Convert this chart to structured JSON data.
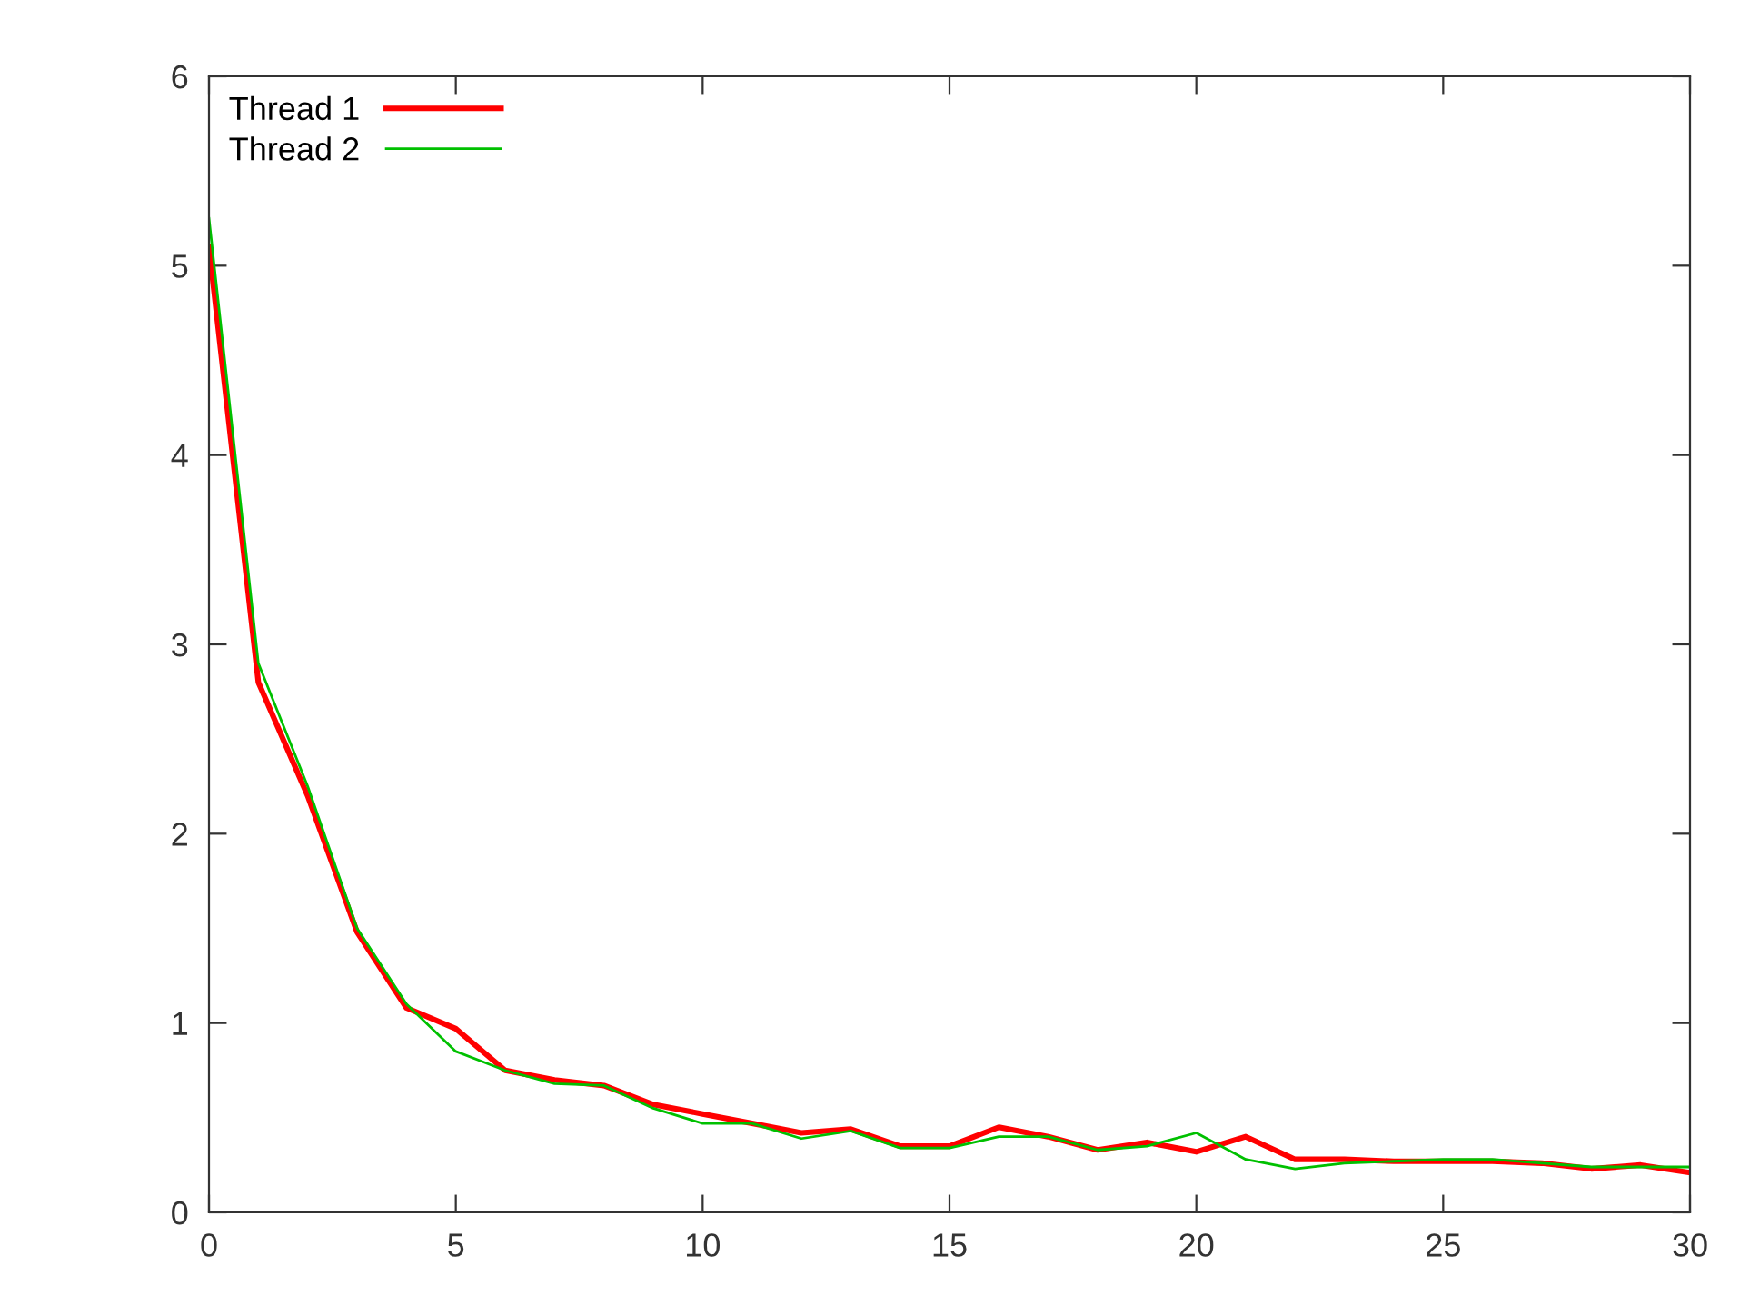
{
  "chart_data": {
    "type": "line",
    "x": [
      0,
      1,
      2,
      3,
      4,
      5,
      6,
      7,
      8,
      9,
      10,
      11,
      12,
      13,
      14,
      15,
      16,
      17,
      18,
      19,
      20,
      21,
      22,
      23,
      24,
      25,
      26,
      27,
      28,
      29,
      30
    ],
    "series": [
      {
        "name": "Thread 1",
        "color": "#ff0000",
        "values": [
          5.1,
          2.8,
          2.2,
          1.48,
          1.08,
          0.97,
          0.75,
          0.7,
          0.67,
          0.57,
          0.52,
          0.47,
          0.42,
          0.44,
          0.35,
          0.35,
          0.45,
          0.4,
          0.33,
          0.37,
          0.32,
          0.4,
          0.28,
          0.28,
          0.27,
          0.27,
          0.27,
          0.26,
          0.23,
          0.25,
          0.21
        ]
      },
      {
        "name": "Thread 2",
        "color": "#00c000",
        "values": [
          5.25,
          2.9,
          2.25,
          1.5,
          1.1,
          0.85,
          0.75,
          0.68,
          0.67,
          0.55,
          0.47,
          0.47,
          0.39,
          0.43,
          0.34,
          0.34,
          0.4,
          0.4,
          0.33,
          0.35,
          0.42,
          0.28,
          0.23,
          0.26,
          0.27,
          0.28,
          0.28,
          0.26,
          0.24,
          0.24,
          0.24
        ]
      }
    ],
    "xlim": [
      0,
      30
    ],
    "xticks": [
      0,
      5,
      10,
      15,
      20,
      25,
      30
    ],
    "ylim": [
      0,
      6
    ],
    "yticks": [
      0,
      1,
      2,
      3,
      4,
      5,
      6
    ],
    "grid": false,
    "legend": "top left",
    "marker": "none",
    "line_style": "solid"
  }
}
